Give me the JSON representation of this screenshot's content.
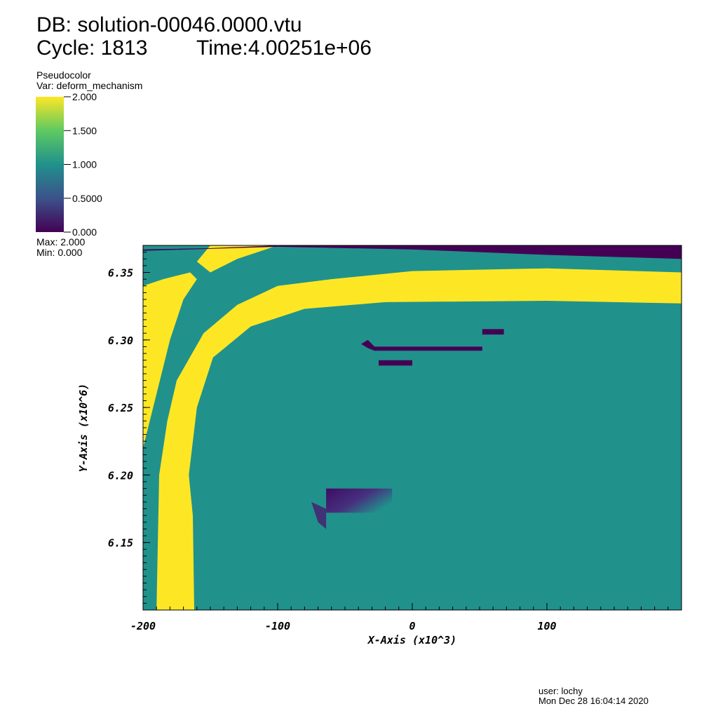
{
  "header": {
    "db_line": "DB: solution-00046.0000.vtu",
    "cycle_label": "Cycle: 1813",
    "time_label": "Time:4.00251e+06"
  },
  "legend": {
    "plot_type": "Pseudocolor",
    "var_label": "Var: deform_mechanism",
    "max_label": "Max: 2.000",
    "min_label": "Min: 0.000",
    "ticks": [
      {
        "value": 2.0,
        "label": "2.000"
      },
      {
        "value": 1.5,
        "label": "1.500"
      },
      {
        "value": 1.0,
        "label": "1.000"
      },
      {
        "value": 0.5,
        "label": "0.5000"
      },
      {
        "value": 0.0,
        "label": "0.000"
      }
    ],
    "colors": [
      "#440154",
      "#3b528b",
      "#21918c",
      "#5ec962",
      "#fde725"
    ]
  },
  "footer": {
    "user": "user: lochy",
    "date": "Mon Dec 28 16:04:14 2020"
  },
  "chart_data": {
    "type": "heatmap",
    "xlabel": "X-Axis (x10^3)",
    "ylabel": "Y-Axis (x10^6)",
    "xlim": [
      -200,
      200
    ],
    "ylim": [
      6.1,
      6.37
    ],
    "x_ticks": [
      {
        "value": -200,
        "label": "-200"
      },
      {
        "value": -100,
        "label": "-100"
      },
      {
        "value": 0,
        "label": "0"
      },
      {
        "value": 100,
        "label": "100"
      }
    ],
    "y_ticks": [
      {
        "value": 6.15,
        "label": "6.15"
      },
      {
        "value": 6.2,
        "label": "6.20"
      },
      {
        "value": 6.25,
        "label": "6.25"
      },
      {
        "value": 6.3,
        "label": "6.30"
      },
      {
        "value": 6.35,
        "label": "6.35"
      }
    ],
    "colormap": "viridis",
    "value_range": [
      0,
      2
    ],
    "background_value": 1.0,
    "regions": [
      {
        "name": "yellow-band",
        "value": 2.0,
        "points": [
          [
            -162,
            6.1
          ],
          [
            -163,
            6.17
          ],
          [
            -166,
            6.2
          ],
          [
            -160,
            6.25
          ],
          [
            -148,
            6.287
          ],
          [
            -120,
            6.31
          ],
          [
            -80,
            6.323
          ],
          [
            -20,
            6.328
          ],
          [
            100,
            6.329
          ],
          [
            200,
            6.327
          ],
          [
            200,
            6.35
          ],
          [
            100,
            6.353
          ],
          [
            0,
            6.351
          ],
          [
            -60,
            6.345
          ],
          [
            -100,
            6.34
          ],
          [
            -130,
            6.326
          ],
          [
            -155,
            6.305
          ],
          [
            -175,
            6.27
          ],
          [
            -182,
            6.24
          ],
          [
            -188,
            6.2
          ],
          [
            -190,
            6.1
          ]
        ]
      },
      {
        "name": "yellow-wedge",
        "value": 2.0,
        "points": [
          [
            -200,
            6.22
          ],
          [
            -190,
            6.26
          ],
          [
            -180,
            6.3
          ],
          [
            -170,
            6.33
          ],
          [
            -160,
            6.345
          ],
          [
            -165,
            6.35
          ],
          [
            -185,
            6.345
          ],
          [
            -200,
            6.34
          ]
        ]
      },
      {
        "name": "top-left-arch",
        "value": 2.0,
        "points": [
          [
            -160,
            6.358
          ],
          [
            -150,
            6.37
          ],
          [
            -100,
            6.37
          ],
          [
            -130,
            6.36
          ],
          [
            -150,
            6.35
          ]
        ]
      },
      {
        "name": "top-strip",
        "value": 0.0,
        "points": [
          [
            -200,
            6.367
          ],
          [
            -150,
            6.368
          ],
          [
            -100,
            6.37
          ],
          [
            200,
            6.37
          ],
          [
            200,
            6.36
          ],
          [
            100,
            6.363
          ],
          [
            0,
            6.367
          ],
          [
            -100,
            6.369
          ],
          [
            -200,
            6.366
          ]
        ]
      },
      {
        "name": "purple-streak",
        "value": 0.0,
        "points": [
          [
            -38,
            6.297
          ],
          [
            -33,
            6.3
          ],
          [
            -28,
            6.295
          ],
          [
            52,
            6.295
          ],
          [
            52,
            6.292
          ],
          [
            -28,
            6.292
          ],
          [
            -33,
            6.294
          ]
        ]
      },
      {
        "name": "purple-small-bar",
        "value": 0.0,
        "points": [
          [
            -25,
            6.285
          ],
          [
            0,
            6.285
          ],
          [
            0,
            6.281
          ],
          [
            -25,
            6.281
          ]
        ]
      },
      {
        "name": "purple-right-tick",
        "value": 0.0,
        "points": [
          [
            52,
            6.308
          ],
          [
            68,
            6.308
          ],
          [
            68,
            6.304
          ],
          [
            52,
            6.304
          ]
        ]
      },
      {
        "name": "purple-block",
        "value": 0.2,
        "points": [
          [
            -64,
            6.19
          ],
          [
            -15,
            6.19
          ],
          [
            -15,
            6.172
          ],
          [
            -64,
            6.172
          ]
        ]
      },
      {
        "name": "purple-left-spike",
        "value": 0.3,
        "points": [
          [
            -75,
            6.18
          ],
          [
            -64,
            6.175
          ],
          [
            -64,
            6.16
          ],
          [
            -70,
            6.165
          ]
        ]
      }
    ]
  }
}
